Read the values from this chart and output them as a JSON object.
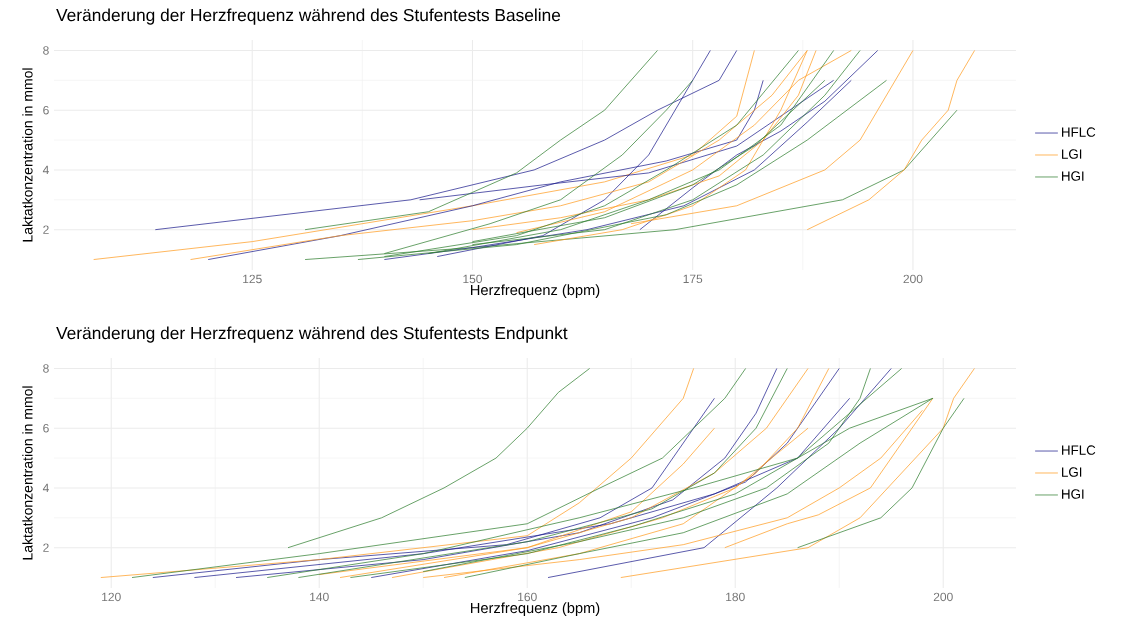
{
  "chart_data": [
    {
      "type": "line",
      "title": "Veränderung der Herzfrequenz während des Stufentests Baseline",
      "xlabel": "Herzfrequenz (bpm)",
      "ylabel": "Laktatkonzentration in mmol",
      "xlim": [
        102.5,
        211.7
      ],
      "ylim": [
        0.65,
        8.35
      ],
      "xticks": [
        125,
        150,
        175,
        200
      ],
      "yticks": [
        2,
        4,
        6,
        8
      ],
      "grid": true,
      "legend": "right",
      "series": [
        {
          "name": "HFLC",
          "color": "#1a1a8c",
          "x": [
            114,
            143,
            157,
            165,
            171,
            178,
            180
          ],
          "values": [
            2,
            3,
            4,
            5,
            6,
            7,
            8
          ]
        },
        {
          "name": "LGI",
          "color": "#ff9a1f",
          "x": [
            107,
            125,
            150,
            165,
            175,
            180,
            182
          ],
          "values": [
            1,
            1.6,
            2.8,
            3.6,
            4.5,
            5.8,
            8
          ]
        },
        {
          "name": "HGI",
          "color": "#2e7d2e",
          "x": [
            131,
            150,
            173,
            192,
            199,
            205
          ],
          "values": [
            1,
            1.4,
            2,
            3,
            4,
            6
          ]
        },
        {
          "color": "#1a1a8c",
          "x": [
            120,
            135,
            150,
            160,
            172,
            180,
            182,
            183
          ],
          "values": [
            1,
            1.8,
            2.8,
            3.6,
            4.3,
            5,
            6,
            7
          ]
        },
        {
          "color": "#1a1a8c",
          "x": [
            144,
            158,
            170,
            180,
            186,
            191
          ],
          "values": [
            3,
            3.5,
            3.9,
            4.8,
            6,
            7
          ]
        },
        {
          "color": "#1a1a8c",
          "x": [
            169,
            175,
            180,
            185,
            190,
            196
          ],
          "values": [
            2,
            3.4,
            4.5,
            5.3,
            6.3,
            8
          ]
        },
        {
          "color": "#1a1a8c",
          "x": [
            140,
            150,
            163,
            174,
            182,
            188,
            193
          ],
          "values": [
            1,
            1.4,
            2,
            2.8,
            4,
            5.6,
            7
          ]
        },
        {
          "color": "#1a1a8c",
          "x": [
            146,
            158,
            165,
            170,
            174,
            177
          ],
          "values": [
            1.1,
            1.8,
            3,
            4.5,
            6.5,
            8
          ]
        },
        {
          "color": "#ff9a1f",
          "x": [
            118,
            135,
            150,
            160,
            170,
            178,
            184,
            188
          ],
          "values": [
            1,
            1.8,
            2.3,
            2.8,
            3.6,
            5,
            6.5,
            8
          ]
        },
        {
          "color": "#ff9a1f",
          "x": [
            188,
            195,
            199,
            201,
            204,
            205,
            207
          ],
          "values": [
            2,
            3,
            4,
            5,
            6,
            7,
            8
          ]
        },
        {
          "color": "#ff9a1f",
          "x": [
            168,
            180,
            190,
            194,
            196,
            200
          ],
          "values": [
            2.2,
            2.8,
            4,
            5,
            6,
            8
          ]
        },
        {
          "color": "#ff9a1f",
          "x": [
            150,
            160,
            170,
            178,
            183,
            187,
            189
          ],
          "values": [
            2,
            2.4,
            3,
            3.8,
            5,
            6.5,
            8
          ]
        },
        {
          "color": "#ff9a1f",
          "x": [
            155,
            165,
            175,
            182,
            187,
            193
          ],
          "values": [
            1.9,
            2.6,
            4,
            5.5,
            7,
            8
          ]
        },
        {
          "color": "#ff9a1f",
          "x": [
            157,
            167,
            175,
            181,
            185,
            188
          ],
          "values": [
            1.5,
            2,
            2.8,
            4,
            6,
            8
          ]
        },
        {
          "color": "#2e7d2e",
          "x": [
            131,
            145,
            155,
            160,
            165,
            171
          ],
          "values": [
            2,
            2.6,
            3.9,
            5,
            6,
            8
          ]
        },
        {
          "color": "#2e7d2e",
          "x": [
            140,
            152,
            160,
            167,
            172,
            175
          ],
          "values": [
            1.2,
            2.2,
            3,
            4.5,
            6,
            7
          ]
        },
        {
          "color": "#2e7d2e",
          "x": [
            140,
            155,
            165,
            172,
            180,
            187
          ],
          "values": [
            1.1,
            1.8,
            2.8,
            4,
            5.5,
            8
          ]
        },
        {
          "color": "#2e7d2e",
          "x": [
            145,
            160,
            170,
            178,
            185,
            191
          ],
          "values": [
            1.2,
            2,
            3,
            4,
            5.5,
            8
          ]
        },
        {
          "color": "#2e7d2e",
          "x": [
            150,
            165,
            175,
            183,
            190,
            194
          ],
          "values": [
            1.5,
            2,
            3,
            4.5,
            6.5,
            8
          ]
        },
        {
          "color": "#2e7d2e",
          "x": [
            137,
            155,
            172,
            180,
            188,
            197
          ],
          "values": [
            1,
            1.5,
            2.5,
            3.5,
            5,
            7
          ]
        },
        {
          "color": "#2e7d2e",
          "x": [
            150,
            165,
            175,
            182,
            190
          ],
          "values": [
            1.6,
            2.4,
            3.5,
            4.8,
            7
          ]
        }
      ]
    },
    {
      "type": "line",
      "title": "Veränderung der Herzfrequenz während des Stufentests Endpunkt",
      "xlabel": "Herzfrequenz (bpm)",
      "ylabel": "Laktatkonzentration in mmol",
      "xlim": [
        114.5,
        207
      ],
      "ylim": [
        0.65,
        8.35
      ],
      "xticks": [
        120,
        140,
        160,
        180,
        200
      ],
      "yticks": [
        2,
        4,
        6,
        8
      ],
      "grid": true,
      "legend": "right",
      "series": [
        {
          "name": "HFLC",
          "color": "#1a1a8c",
          "x": [
            124,
            140,
            158,
            167,
            172,
            178
          ],
          "values": [
            1,
            1.6,
            2.1,
            3,
            4,
            7
          ]
        },
        {
          "name": "LGI",
          "color": "#ff9a1f",
          "x": [
            119,
            140,
            160,
            165,
            170,
            175,
            176
          ],
          "values": [
            1,
            1.6,
            2.4,
            3.5,
            5,
            7,
            8
          ]
        },
        {
          "name": "HGI",
          "color": "#2e7d2e",
          "x": [
            137,
            146,
            152,
            157,
            160,
            163,
            166
          ],
          "values": [
            2,
            3,
            4,
            5,
            6,
            7.2,
            8
          ]
        },
        {
          "color": "#1a1a8c",
          "x": [
            162,
            177,
            184,
            187,
            190,
            195
          ],
          "values": [
            1,
            2,
            4,
            5,
            6,
            8
          ]
        },
        {
          "color": "#1a1a8c",
          "x": [
            132,
            150,
            165,
            174,
            179,
            182,
            184
          ],
          "values": [
            1,
            1.6,
            2.5,
            3.6,
            5,
            6.5,
            8
          ]
        },
        {
          "color": "#1a1a8c",
          "x": [
            145,
            160,
            172,
            181,
            185,
            190
          ],
          "values": [
            1,
            1.9,
            3,
            4.2,
            5.5,
            8
          ]
        },
        {
          "color": "#1a1a8c",
          "x": [
            128,
            150,
            168,
            178,
            186,
            191
          ],
          "values": [
            1,
            1.8,
            2.8,
            3.8,
            5,
            7
          ]
        },
        {
          "color": "#ff9a1f",
          "x": [
            169,
            187,
            192,
            196,
            200,
            201,
            203
          ],
          "values": [
            1,
            2,
            3,
            4.5,
            6,
            7,
            8
          ]
        },
        {
          "color": "#ff9a1f",
          "x": [
            179,
            185,
            188,
            193,
            196,
            199
          ],
          "values": [
            2,
            2.8,
            3.1,
            4,
            5.5,
            7
          ]
        },
        {
          "color": "#ff9a1f",
          "x": [
            150,
            165,
            175,
            185,
            190,
            194,
            198
          ],
          "values": [
            1,
            1.6,
            2.1,
            3,
            4,
            5,
            6.6
          ]
        },
        {
          "color": "#ff9a1f",
          "x": [
            142,
            160,
            170,
            178,
            183,
            187
          ],
          "values": [
            1,
            2,
            3,
            4.5,
            6,
            8
          ]
        },
        {
          "color": "#ff9a1f",
          "x": [
            152,
            165,
            175,
            182,
            186,
            189
          ],
          "values": [
            1,
            1.8,
            2.8,
            4.5,
            6,
            8
          ]
        },
        {
          "color": "#ff9a1f",
          "x": [
            140,
            160,
            170,
            175,
            178
          ],
          "values": [
            1.1,
            2,
            3.2,
            4.8,
            6
          ]
        },
        {
          "color": "#ff9a1f",
          "x": [
            147,
            163,
            173,
            180,
            187
          ],
          "values": [
            1,
            2,
            3,
            4,
            6
          ]
        },
        {
          "color": "#2e7d2e",
          "x": [
            122,
            140,
            160,
            167,
            173,
            176,
            179,
            181
          ],
          "values": [
            1,
            1.8,
            2.8,
            4,
            5,
            6,
            7,
            8
          ]
        },
        {
          "color": "#2e7d2e",
          "x": [
            186,
            194,
            197,
            200,
            202
          ],
          "values": [
            2,
            3,
            4,
            6,
            7
          ]
        },
        {
          "color": "#2e7d2e",
          "x": [
            135,
            150,
            165,
            176,
            186,
            191,
            199
          ],
          "values": [
            1,
            1.8,
            3,
            4,
            5,
            6,
            7
          ]
        },
        {
          "color": "#2e7d2e",
          "x": [
            143,
            160,
            170,
            180,
            186,
            191,
            196
          ],
          "values": [
            1,
            1.8,
            2.7,
            3.8,
            5,
            6.5,
            8
          ]
        },
        {
          "color": "#2e7d2e",
          "x": [
            150,
            165,
            175,
            183,
            189,
            192,
            193
          ],
          "values": [
            1.2,
            2.2,
            3,
            4,
            5.5,
            7,
            8
          ]
        },
        {
          "color": "#2e7d2e",
          "x": [
            138,
            160,
            172,
            178,
            182,
            185
          ],
          "values": [
            1,
            2.2,
            3.3,
            4.5,
            6,
            8
          ]
        },
        {
          "color": "#2e7d2e",
          "x": [
            154,
            165,
            175,
            185,
            192,
            199
          ],
          "values": [
            1,
            1.8,
            2.5,
            3.8,
            5.5,
            7
          ]
        }
      ]
    }
  ]
}
